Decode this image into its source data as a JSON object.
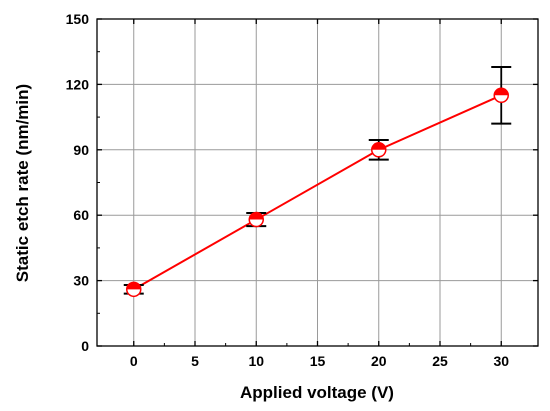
{
  "chart_data": {
    "type": "line",
    "xlabel": "Applied voltage (V)",
    "ylabel": "Static etch rate (nm/min)",
    "xlim": [
      -3,
      33
    ],
    "ylim": [
      0,
      150
    ],
    "xticks": [
      0,
      5,
      10,
      15,
      20,
      25,
      30
    ],
    "yticks": [
      0,
      30,
      60,
      90,
      120,
      150
    ],
    "grid": true,
    "series": [
      {
        "x": [
          0,
          10,
          20,
          30
        ],
        "y": [
          26,
          58,
          90,
          115
        ],
        "error": [
          2,
          3,
          4.5,
          13
        ],
        "line_color": "#ff0000",
        "marker": "half-filled-circle",
        "marker_fill": "#ff0000",
        "errorbar_color": "#000000"
      }
    ]
  }
}
